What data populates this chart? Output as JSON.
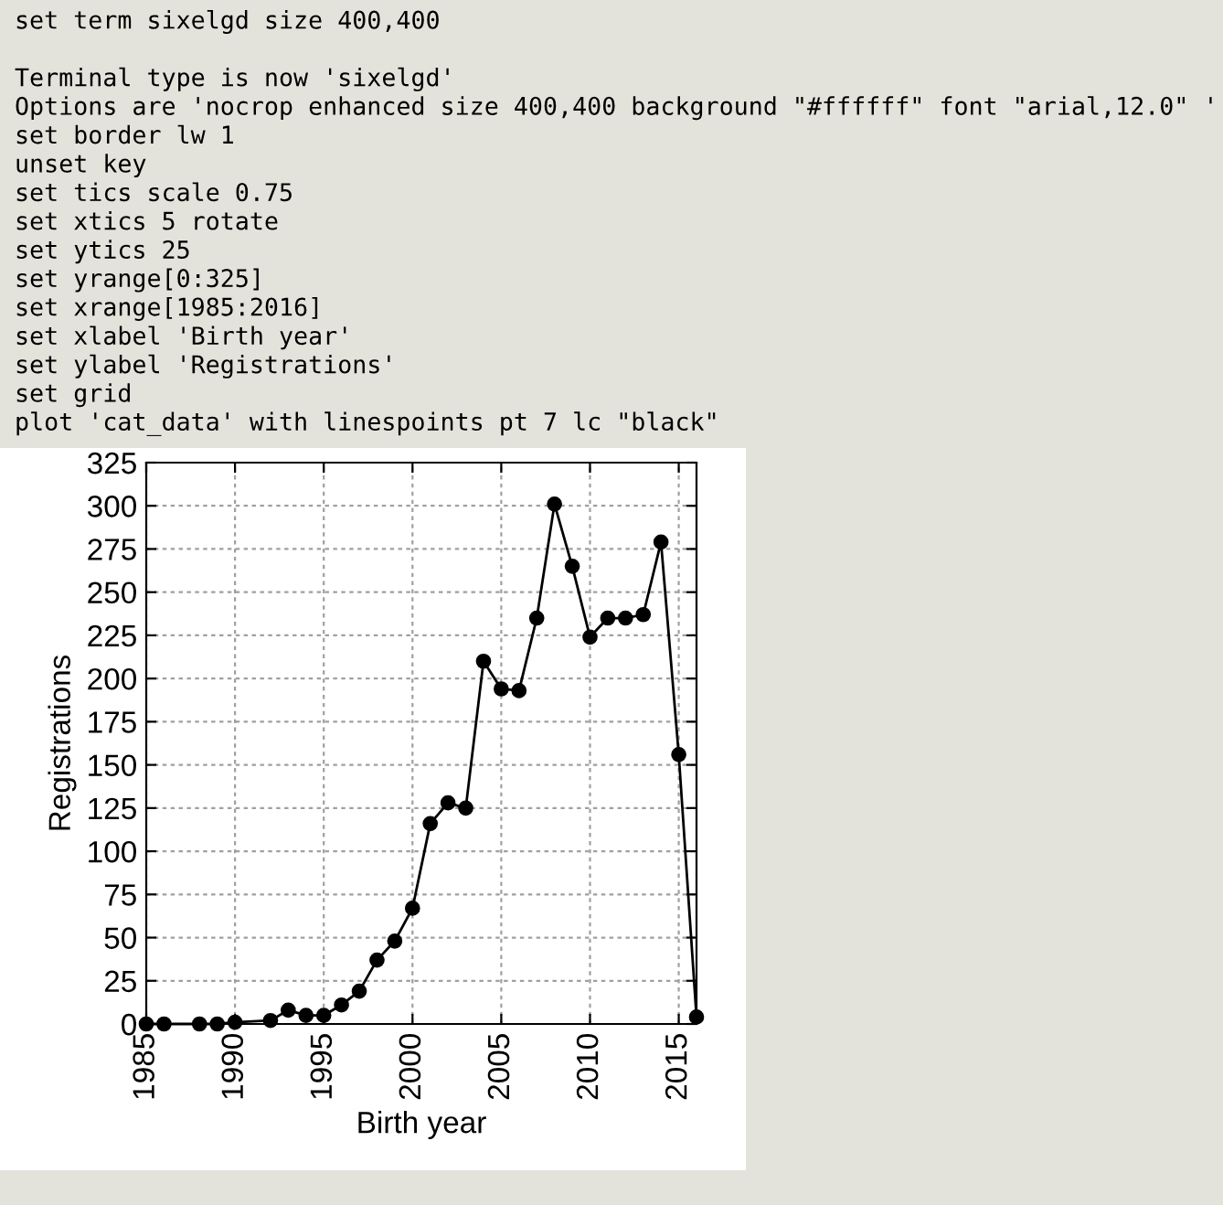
{
  "chart_data": {
    "type": "line",
    "xlabel": "Birth year",
    "ylabel": "Registrations",
    "x": [
      1985,
      1986,
      1988,
      1989,
      1990,
      1992,
      1993,
      1994,
      1995,
      1996,
      1997,
      1998,
      1999,
      2000,
      2001,
      2002,
      2003,
      2004,
      2005,
      2006,
      2007,
      2008,
      2009,
      2010,
      2011,
      2012,
      2013,
      2014,
      2015,
      2016
    ],
    "series": [
      {
        "color": "#000000",
        "values": [
          0,
          0,
          0,
          0,
          1,
          2,
          8,
          5,
          5,
          11,
          19,
          37,
          48,
          67,
          116,
          128,
          125,
          210,
          194,
          193,
          235,
          301,
          265,
          224,
          235,
          235,
          237,
          279,
          156,
          4
        ]
      }
    ],
    "xlim": [
      1985,
      2016
    ],
    "xticks": [
      1985,
      1990,
      1995,
      2000,
      2005,
      2010,
      2015
    ],
    "ylim": [
      0,
      325
    ],
    "yticks": [
      0,
      25,
      50,
      75,
      100,
      125,
      150,
      175,
      200,
      225,
      250,
      275,
      300,
      325
    ],
    "grid": true,
    "legend": false,
    "marker": "circle",
    "line_style": "solid",
    "annotations": [
      "set term sixelgd size 400,400",
      "Terminal type is now 'sixelgd'",
      "Options are 'nocrop enhanced size 400,400 background \"#ffffff\" font \"arial,12.0\" '",
      "set border lw 1",
      "unset key",
      "set tics scale 0.75",
      "set xtics 5 rotate",
      "set ytics 25",
      "set yrange[0:325]",
      "set xrange[1985:2016]",
      "set xlabel 'Birth year'",
      "set ylabel 'Registrations'",
      "set grid",
      "plot 'cat_data' with linespoints pt 7 lc \"black\""
    ]
  }
}
